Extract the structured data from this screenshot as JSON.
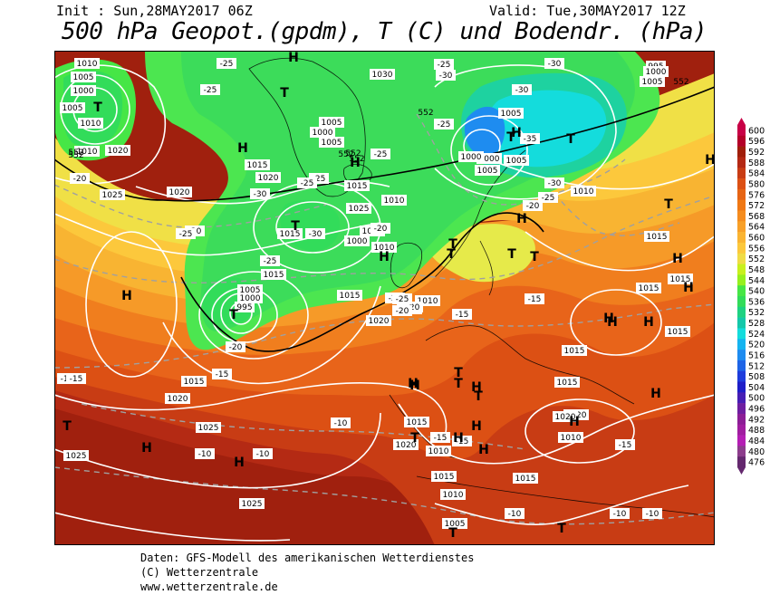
{
  "header": {
    "init": "Init : Sun,28MAY2017 06Z",
    "valid": "Valid: Tue,30MAY2017 12Z",
    "title": "500 hPa Geopot.(gpdm), T (C) und Bodendr. (hPa)"
  },
  "footer": {
    "line1": "Daten: GFS-Modell des amerikanischen Wetterdienstes",
    "line2": "(C) Wetterzentrale",
    "line3": "www.wetterzentrale.de"
  },
  "legend": {
    "levels": [
      600,
      596,
      592,
      588,
      584,
      580,
      576,
      572,
      568,
      564,
      560,
      556,
      552,
      548,
      544,
      540,
      536,
      532,
      528,
      524,
      520,
      516,
      512,
      508,
      504,
      500,
      496,
      492,
      488,
      484,
      480,
      476
    ],
    "colors": [
      "#c80046",
      "#b40028",
      "#a01e0a",
      "#b42814",
      "#c83c14",
      "#dc5014",
      "#e66414",
      "#f07814",
      "#f58c1e",
      "#f8a028",
      "#fab432",
      "#fcc83c",
      "#f0dc46",
      "#c8f01e",
      "#96f01e",
      "#46e646",
      "#32dc5a",
      "#1ed282",
      "#14c8aa",
      "#14dcdc",
      "#14b4f0",
      "#1e8cf0",
      "#1e64e6",
      "#1e3cdc",
      "#1e1ec8",
      "#461eb4",
      "#6e1ea0",
      "#8c1e96",
      "#a01ea0",
      "#b41eb4",
      "#8c3c8c",
      "#64286e"
    ]
  },
  "pressure_labels": [
    "1010",
    "1005",
    "1000",
    "1005",
    "1010",
    "1010",
    "1020",
    "1025",
    "1030",
    "1005",
    "1000",
    "1005",
    "1015",
    "1020",
    "1025",
    "1015",
    "1010",
    "1005",
    "1000",
    "1010",
    "1005",
    "1000",
    "995",
    "1015",
    "1020",
    "1015",
    "1020",
    "1025",
    "1025",
    "1015",
    "1010",
    "1010",
    "1015",
    "1015",
    "1020",
    "1015",
    "1015",
    "1010",
    "1005",
    "1015",
    "1020",
    "1015",
    "1025",
    "995",
    "1000",
    "1005",
    "1005",
    "1005",
    "1000",
    "1005",
    "1010",
    "1015",
    "1015",
    "1015",
    "1010",
    "1010",
    "1020",
    "1015",
    "1000",
    "1020"
  ],
  "temperature_labels": [
    "-25",
    "-25",
    "-25",
    "-30",
    "-30",
    "-25",
    "-25",
    "-30",
    "-25",
    "-30",
    "-20",
    "-20",
    "-25",
    "-20",
    "-20",
    "-20",
    "-15",
    "-15",
    "-10",
    "-10",
    "-10",
    "-15",
    "-15",
    "-15",
    "-10",
    "-10",
    "-15",
    "-10",
    "-10",
    "-15",
    "-20",
    "-25",
    "-25",
    "-20",
    "-25",
    "-30",
    "-35",
    "-30",
    "-25",
    "-20"
  ],
  "geopot_labels": [
    "552",
    "552",
    "552",
    "552",
    "552",
    "552",
    "552"
  ],
  "systems": [
    {
      "label": "T"
    },
    {
      "label": "H"
    },
    {
      "label": "T"
    },
    {
      "label": "H"
    },
    {
      "label": "H"
    },
    {
      "label": "T"
    },
    {
      "label": "H"
    },
    {
      "label": "T"
    },
    {
      "label": "H"
    },
    {
      "label": "T"
    },
    {
      "label": "T"
    },
    {
      "label": "T"
    },
    {
      "label": "H"
    },
    {
      "label": "H"
    },
    {
      "label": "T"
    },
    {
      "label": "T"
    },
    {
      "label": "H"
    },
    {
      "label": "H"
    },
    {
      "label": "T"
    },
    {
      "label": "H"
    },
    {
      "label": "T"
    },
    {
      "label": "H"
    },
    {
      "label": "H"
    },
    {
      "label": "T"
    },
    {
      "label": "H"
    },
    {
      "label": "H"
    },
    {
      "label": "H"
    },
    {
      "label": "H"
    },
    {
      "label": "T"
    },
    {
      "label": "T"
    },
    {
      "label": "H"
    },
    {
      "label": "T"
    },
    {
      "label": "H"
    },
    {
      "label": "H"
    },
    {
      "label": "T"
    },
    {
      "label": "H"
    },
    {
      "label": "H"
    },
    {
      "label": "H"
    },
    {
      "label": "T"
    },
    {
      "label": "H"
    },
    {
      "label": "T"
    }
  ]
}
